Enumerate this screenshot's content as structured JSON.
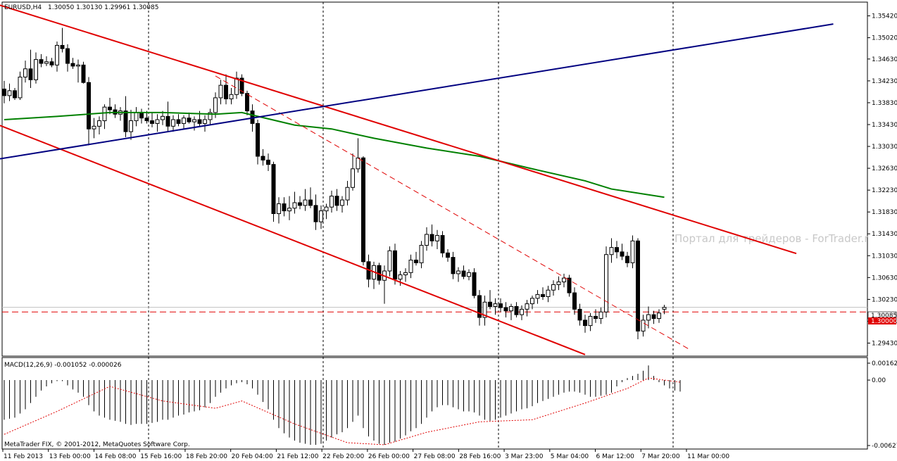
{
  "header": {
    "symbol_tf": "EURUSD,H4",
    "ohlc": "1.30050 1.30130 1.29961 1.30085"
  },
  "watermark": "Портал для трейдеров - ForTrader.ru",
  "copyright": "MetaTrader FIX, © 2001-2012, MetaQuotes Software Corp.",
  "macd_label": "MACD(12,26,9) -0.001052 -0.000026",
  "colors": {
    "bull_body": "#ffffff",
    "bear_body": "#000000",
    "channel": "#e00000",
    "trendline": "#000080",
    "ma": "#008000",
    "level": "#e00000",
    "signal": "#e00000",
    "current_price_bg": "#ffffff",
    "level_bg": "#e00000"
  },
  "price_axis": {
    "ticks": [
      "1.35420",
      "1.35020",
      "1.34630",
      "1.34230",
      "1.33830",
      "1.33430",
      "1.33030",
      "1.32630",
      "1.32230",
      "1.31830",
      "1.31430",
      "1.31030",
      "1.30630",
      "1.30230",
      "1.29830",
      "1.29430"
    ],
    "current_price": "1.30085",
    "level_price": "1.30000"
  },
  "macd_axis": {
    "ticks": [
      "0.001622",
      "0.00",
      "-0.00627"
    ]
  },
  "time_axis": {
    "labels": [
      "11 Feb 2013",
      "13 Feb 00:00",
      "14 Feb 08:00",
      "15 Feb 16:00",
      "18 Feb 20:00",
      "20 Feb 04:00",
      "21 Feb 12:00",
      "22 Feb 20:00",
      "26 Feb 00:00",
      "27 Feb 08:00",
      "28 Feb 16:00",
      "3 Mar 23:00",
      "5 Mar 04:00",
      "6 Mar 12:00",
      "7 Mar 20:00",
      "11 Mar 00:00"
    ]
  },
  "chart_data": {
    "type": "candlestick",
    "symbol": "EURUSD",
    "timeframe": "H4",
    "ylim": [
      1.2923,
      1.3562
    ],
    "grid": false,
    "candles": [
      {
        "o": 1.3408,
        "h": 1.3423,
        "l": 1.3382,
        "c": 1.3396
      },
      {
        "o": 1.3396,
        "h": 1.3418,
        "l": 1.3386,
        "c": 1.3405
      },
      {
        "o": 1.3405,
        "h": 1.341,
        "l": 1.3388,
        "c": 1.3392
      },
      {
        "o": 1.3392,
        "h": 1.344,
        "l": 1.3388,
        "c": 1.343
      },
      {
        "o": 1.343,
        "h": 1.346,
        "l": 1.342,
        "c": 1.3445
      },
      {
        "o": 1.3445,
        "h": 1.348,
        "l": 1.341,
        "c": 1.3425
      },
      {
        "o": 1.3425,
        "h": 1.3475,
        "l": 1.3418,
        "c": 1.3462
      },
      {
        "o": 1.3462,
        "h": 1.3472,
        "l": 1.3448,
        "c": 1.3455
      },
      {
        "o": 1.3455,
        "h": 1.3468,
        "l": 1.345,
        "c": 1.3458
      },
      {
        "o": 1.3458,
        "h": 1.3465,
        "l": 1.3448,
        "c": 1.3452
      },
      {
        "o": 1.3452,
        "h": 1.3495,
        "l": 1.344,
        "c": 1.3488
      },
      {
        "o": 1.3488,
        "h": 1.352,
        "l": 1.3475,
        "c": 1.3482
      },
      {
        "o": 1.3482,
        "h": 1.349,
        "l": 1.344,
        "c": 1.3455
      },
      {
        "o": 1.3455,
        "h": 1.3465,
        "l": 1.3445,
        "c": 1.345
      },
      {
        "o": 1.345,
        "h": 1.3462,
        "l": 1.342,
        "c": 1.3452
      },
      {
        "o": 1.3452,
        "h": 1.3458,
        "l": 1.3418,
        "c": 1.342
      },
      {
        "o": 1.342,
        "h": 1.343,
        "l": 1.3305,
        "c": 1.3335
      },
      {
        "o": 1.3335,
        "h": 1.3355,
        "l": 1.3318,
        "c": 1.334
      },
      {
        "o": 1.334,
        "h": 1.3358,
        "l": 1.3325,
        "c": 1.335
      },
      {
        "o": 1.335,
        "h": 1.338,
        "l": 1.3335,
        "c": 1.3375
      },
      {
        "o": 1.3375,
        "h": 1.3392,
        "l": 1.3362,
        "c": 1.337
      },
      {
        "o": 1.337,
        "h": 1.338,
        "l": 1.3355,
        "c": 1.3362
      },
      {
        "o": 1.3362,
        "h": 1.3375,
        "l": 1.335,
        "c": 1.3368
      },
      {
        "o": 1.3368,
        "h": 1.3395,
        "l": 1.332,
        "c": 1.333
      },
      {
        "o": 1.333,
        "h": 1.337,
        "l": 1.3315,
        "c": 1.335
      },
      {
        "o": 1.335,
        "h": 1.3375,
        "l": 1.334,
        "c": 1.3365
      },
      {
        "o": 1.3365,
        "h": 1.3372,
        "l": 1.3345,
        "c": 1.3355
      },
      {
        "o": 1.3355,
        "h": 1.3368,
        "l": 1.3345,
        "c": 1.335
      },
      {
        "o": 1.335,
        "h": 1.3365,
        "l": 1.3338,
        "c": 1.3345
      },
      {
        "o": 1.3345,
        "h": 1.3362,
        "l": 1.333,
        "c": 1.3352
      },
      {
        "o": 1.3352,
        "h": 1.3368,
        "l": 1.3342,
        "c": 1.3358
      },
      {
        "o": 1.3358,
        "h": 1.3385,
        "l": 1.333,
        "c": 1.334
      },
      {
        "o": 1.334,
        "h": 1.336,
        "l": 1.333,
        "c": 1.3352
      },
      {
        "o": 1.3352,
        "h": 1.3362,
        "l": 1.334,
        "c": 1.3345
      },
      {
        "o": 1.3345,
        "h": 1.336,
        "l": 1.3335,
        "c": 1.3355
      },
      {
        "o": 1.3355,
        "h": 1.3365,
        "l": 1.3345,
        "c": 1.3348
      },
      {
        "o": 1.3348,
        "h": 1.3358,
        "l": 1.3332,
        "c": 1.3352
      },
      {
        "o": 1.3352,
        "h": 1.3368,
        "l": 1.334,
        "c": 1.3345
      },
      {
        "o": 1.3345,
        "h": 1.336,
        "l": 1.333,
        "c": 1.3352
      },
      {
        "o": 1.3352,
        "h": 1.3372,
        "l": 1.3342,
        "c": 1.3365
      },
      {
        "o": 1.3365,
        "h": 1.3402,
        "l": 1.3355,
        "c": 1.3392
      },
      {
        "o": 1.3392,
        "h": 1.3425,
        "l": 1.338,
        "c": 1.3415
      },
      {
        "o": 1.3415,
        "h": 1.3435,
        "l": 1.338,
        "c": 1.339
      },
      {
        "o": 1.339,
        "h": 1.341,
        "l": 1.338,
        "c": 1.3398
      },
      {
        "o": 1.3398,
        "h": 1.344,
        "l": 1.339,
        "c": 1.3428
      },
      {
        "o": 1.3428,
        "h": 1.3435,
        "l": 1.3395,
        "c": 1.34
      },
      {
        "o": 1.34,
        "h": 1.3405,
        "l": 1.336,
        "c": 1.3368
      },
      {
        "o": 1.3368,
        "h": 1.338,
        "l": 1.333,
        "c": 1.3345
      },
      {
        "o": 1.3345,
        "h": 1.3352,
        "l": 1.327,
        "c": 1.3285
      },
      {
        "o": 1.3285,
        "h": 1.3298,
        "l": 1.3268,
        "c": 1.3278
      },
      {
        "o": 1.3278,
        "h": 1.329,
        "l": 1.3258,
        "c": 1.327
      },
      {
        "o": 1.327,
        "h": 1.3275,
        "l": 1.3165,
        "c": 1.318
      },
      {
        "o": 1.318,
        "h": 1.321,
        "l": 1.3162,
        "c": 1.3198
      },
      {
        "o": 1.3198,
        "h": 1.321,
        "l": 1.3175,
        "c": 1.3185
      },
      {
        "o": 1.3185,
        "h": 1.3212,
        "l": 1.3168,
        "c": 1.319
      },
      {
        "o": 1.319,
        "h": 1.322,
        "l": 1.318,
        "c": 1.32
      },
      {
        "o": 1.32,
        "h": 1.3212,
        "l": 1.3188,
        "c": 1.3195
      },
      {
        "o": 1.3195,
        "h": 1.3225,
        "l": 1.3185,
        "c": 1.3205
      },
      {
        "o": 1.3205,
        "h": 1.3228,
        "l": 1.319,
        "c": 1.3195
      },
      {
        "o": 1.3195,
        "h": 1.3215,
        "l": 1.315,
        "c": 1.3165
      },
      {
        "o": 1.3165,
        "h": 1.3195,
        "l": 1.3152,
        "c": 1.3185
      },
      {
        "o": 1.3185,
        "h": 1.3198,
        "l": 1.317,
        "c": 1.3192
      },
      {
        "o": 1.3192,
        "h": 1.3222,
        "l": 1.3182,
        "c": 1.3212
      },
      {
        "o": 1.3212,
        "h": 1.3225,
        "l": 1.3185,
        "c": 1.3195
      },
      {
        "o": 1.3195,
        "h": 1.3212,
        "l": 1.3182,
        "c": 1.3205
      },
      {
        "o": 1.3205,
        "h": 1.324,
        "l": 1.3195,
        "c": 1.3228
      },
      {
        "o": 1.3228,
        "h": 1.329,
        "l": 1.3222,
        "c": 1.3262
      },
      {
        "o": 1.3262,
        "h": 1.3318,
        "l": 1.3255,
        "c": 1.3282
      },
      {
        "o": 1.3282,
        "h": 1.3285,
        "l": 1.3085,
        "c": 1.3092
      },
      {
        "o": 1.3092,
        "h": 1.3105,
        "l": 1.3045,
        "c": 1.306
      },
      {
        "o": 1.306,
        "h": 1.3092,
        "l": 1.3042,
        "c": 1.3085
      },
      {
        "o": 1.3085,
        "h": 1.309,
        "l": 1.305,
        "c": 1.3058
      },
      {
        "o": 1.3058,
        "h": 1.3085,
        "l": 1.3015,
        "c": 1.3075
      },
      {
        "o": 1.3075,
        "h": 1.312,
        "l": 1.3065,
        "c": 1.3112
      },
      {
        "o": 1.3112,
        "h": 1.3125,
        "l": 1.305,
        "c": 1.306
      },
      {
        "o": 1.306,
        "h": 1.3075,
        "l": 1.3048,
        "c": 1.3068
      },
      {
        "o": 1.3068,
        "h": 1.308,
        "l": 1.3055,
        "c": 1.3072
      },
      {
        "o": 1.3072,
        "h": 1.3105,
        "l": 1.3062,
        "c": 1.3095
      },
      {
        "o": 1.3095,
        "h": 1.311,
        "l": 1.3085,
        "c": 1.309
      },
      {
        "o": 1.309,
        "h": 1.313,
        "l": 1.308,
        "c": 1.3122
      },
      {
        "o": 1.3122,
        "h": 1.3155,
        "l": 1.3112,
        "c": 1.3142
      },
      {
        "o": 1.3142,
        "h": 1.316,
        "l": 1.312,
        "c": 1.313
      },
      {
        "o": 1.313,
        "h": 1.315,
        "l": 1.3115,
        "c": 1.314
      },
      {
        "o": 1.314,
        "h": 1.3148,
        "l": 1.31,
        "c": 1.3108
      },
      {
        "o": 1.3108,
        "h": 1.3115,
        "l": 1.3092,
        "c": 1.31
      },
      {
        "o": 1.31,
        "h": 1.311,
        "l": 1.306,
        "c": 1.307
      },
      {
        "o": 1.307,
        "h": 1.3082,
        "l": 1.3055,
        "c": 1.3075
      },
      {
        "o": 1.3075,
        "h": 1.3085,
        "l": 1.306,
        "c": 1.3065
      },
      {
        "o": 1.3065,
        "h": 1.3078,
        "l": 1.3058,
        "c": 1.3072
      },
      {
        "o": 1.3072,
        "h": 1.308,
        "l": 1.3025,
        "c": 1.303
      },
      {
        "o": 1.303,
        "h": 1.304,
        "l": 1.2975,
        "c": 1.299
      },
      {
        "o": 1.299,
        "h": 1.303,
        "l": 1.2975,
        "c": 1.3018
      },
      {
        "o": 1.3018,
        "h": 1.304,
        "l": 1.3005,
        "c": 1.301
      },
      {
        "o": 1.301,
        "h": 1.3025,
        "l": 1.2995,
        "c": 1.3015
      },
      {
        "o": 1.3015,
        "h": 1.3025,
        "l": 1.3,
        "c": 1.3008
      },
      {
        "o": 1.3008,
        "h": 1.3018,
        "l": 1.299,
        "c": 1.3002
      },
      {
        "o": 1.3002,
        "h": 1.3015,
        "l": 1.2985,
        "c": 1.301
      },
      {
        "o": 1.301,
        "h": 1.3018,
        "l": 1.299,
        "c": 1.2995
      },
      {
        "o": 1.2995,
        "h": 1.3012,
        "l": 1.2985,
        "c": 1.3005
      },
      {
        "o": 1.3005,
        "h": 1.3022,
        "l": 1.2992,
        "c": 1.3015
      },
      {
        "o": 1.3015,
        "h": 1.303,
        "l": 1.3005,
        "c": 1.3025
      },
      {
        "o": 1.3025,
        "h": 1.304,
        "l": 1.3015,
        "c": 1.3032
      },
      {
        "o": 1.3032,
        "h": 1.3045,
        "l": 1.3022,
        "c": 1.3028
      },
      {
        "o": 1.3028,
        "h": 1.3048,
        "l": 1.3018,
        "c": 1.304
      },
      {
        "o": 1.304,
        "h": 1.3058,
        "l": 1.303,
        "c": 1.305
      },
      {
        "o": 1.305,
        "h": 1.3065,
        "l": 1.304,
        "c": 1.3055
      },
      {
        "o": 1.3055,
        "h": 1.307,
        "l": 1.3045,
        "c": 1.3062
      },
      {
        "o": 1.3062,
        "h": 1.3068,
        "l": 1.3028,
        "c": 1.3035
      },
      {
        "o": 1.3035,
        "h": 1.3045,
        "l": 1.2995,
        "c": 1.3005
      },
      {
        "o": 1.3005,
        "h": 1.3015,
        "l": 1.2975,
        "c": 1.2985
      },
      {
        "o": 1.2985,
        "h": 1.2995,
        "l": 1.2962,
        "c": 1.2975
      },
      {
        "o": 1.2975,
        "h": 1.2998,
        "l": 1.2965,
        "c": 1.2992
      },
      {
        "o": 1.2992,
        "h": 1.3005,
        "l": 1.298,
        "c": 1.2988
      },
      {
        "o": 1.2988,
        "h": 1.3008,
        "l": 1.2978,
        "c": 1.3
      },
      {
        "o": 1.3,
        "h": 1.312,
        "l": 1.299,
        "c": 1.3105
      },
      {
        "o": 1.3105,
        "h": 1.3135,
        "l": 1.309,
        "c": 1.3118
      },
      {
        "o": 1.3118,
        "h": 1.313,
        "l": 1.3098,
        "c": 1.311
      },
      {
        "o": 1.311,
        "h": 1.3125,
        "l": 1.3095,
        "c": 1.3102
      },
      {
        "o": 1.3102,
        "h": 1.311,
        "l": 1.3082,
        "c": 1.309
      },
      {
        "o": 1.309,
        "h": 1.314,
        "l": 1.308,
        "c": 1.313
      },
      {
        "o": 1.313,
        "h": 1.3135,
        "l": 1.295,
        "c": 1.2965
      },
      {
        "o": 1.2965,
        "h": 1.2995,
        "l": 1.2955,
        "c": 1.2985
      },
      {
        "o": 1.2985,
        "h": 1.301,
        "l": 1.297,
        "c": 1.2995
      },
      {
        "o": 1.2995,
        "h": 1.3002,
        "l": 1.2978,
        "c": 1.2988
      },
      {
        "o": 1.2988,
        "h": 1.3005,
        "l": 1.298,
        "c": 1.2998
      },
      {
        "o": 1.3005,
        "h": 1.3013,
        "l": 1.2996,
        "c": 1.30085
      }
    ],
    "moving_average": [
      [
        0,
        1.3352
      ],
      [
        10,
        1.3358
      ],
      [
        20,
        1.3365
      ],
      [
        30,
        1.3365
      ],
      [
        40,
        1.3362
      ],
      [
        45,
        1.3365
      ],
      [
        55,
        1.3342
      ],
      [
        62,
        1.3335
      ],
      [
        70,
        1.3318
      ],
      [
        80,
        1.33
      ],
      [
        90,
        1.3285
      ],
      [
        100,
        1.3262
      ],
      [
        110,
        1.324
      ],
      [
        115,
        1.3225
      ],
      [
        125,
        1.321
      ]
    ],
    "trend_lines": [
      {
        "name": "channel-upper",
        "style": "solid",
        "color": "#e00000",
        "points": [
          [
            -1,
            1.3562
          ],
          [
            150,
            1.3107
          ]
        ]
      },
      {
        "name": "channel-lower",
        "style": "solid",
        "color": "#e00000",
        "points": [
          [
            -1,
            1.3342
          ],
          [
            110,
            1.2922
          ]
        ]
      },
      {
        "name": "channel-mid",
        "style": "dashed",
        "color": "#e00000",
        "points": [
          [
            40,
            1.3432
          ],
          [
            130,
            1.293
          ]
        ]
      },
      {
        "name": "rising-trendline",
        "style": "solid",
        "color": "#000080",
        "points": [
          [
            -1,
            1.328
          ],
          [
            157,
            1.3527
          ]
        ]
      }
    ],
    "horizontal_levels": [
      {
        "name": "level-1.3000",
        "price": 1.3,
        "style": "dashed",
        "color": "#e00000"
      }
    ],
    "macd": {
      "params": "12,26,9",
      "value": -0.001052,
      "signal_value": -2.6e-05,
      "ylim": [
        -0.00627,
        0.001622
      ],
      "histogram": [
        -0.0038,
        -0.0037,
        -0.0036,
        -0.0032,
        -0.0028,
        -0.0022,
        -0.0016,
        -0.001,
        -0.0006,
        -0.0003,
        -0.0001,
        -0.0001,
        -0.0005,
        -0.0009,
        -0.0012,
        -0.0016,
        -0.0024,
        -0.003,
        -0.0034,
        -0.0036,
        -0.0038,
        -0.0039,
        -0.004,
        -0.0042,
        -0.0043,
        -0.0042,
        -0.0042,
        -0.0042,
        -0.0041,
        -0.004,
        -0.0038,
        -0.0038,
        -0.0036,
        -0.0034,
        -0.0033,
        -0.0031,
        -0.003,
        -0.0029,
        -0.0026,
        -0.0022,
        -0.0016,
        -0.0012,
        -0.0008,
        -0.0005,
        -0.0003,
        -0.0002,
        -0.0004,
        -0.0008,
        -0.0014,
        -0.0021,
        -0.0028,
        -0.0038,
        -0.0046,
        -0.0051,
        -0.0055,
        -0.0058,
        -0.006,
        -0.0061,
        -0.0062,
        -0.0062,
        -0.0061,
        -0.0058,
        -0.0055,
        -0.0052,
        -0.005,
        -0.0046,
        -0.004,
        -0.0034,
        -0.0046,
        -0.0054,
        -0.0058,
        -0.0061,
        -0.0062,
        -0.006,
        -0.0059,
        -0.0056,
        -0.0053,
        -0.0049,
        -0.0046,
        -0.0042,
        -0.0036,
        -0.003,
        -0.0026,
        -0.0024,
        -0.0024,
        -0.0026,
        -0.0028,
        -0.003,
        -0.003,
        -0.0031,
        -0.0034,
        -0.0038,
        -0.0039,
        -0.0038,
        -0.0036,
        -0.0034,
        -0.0032,
        -0.003,
        -0.0028,
        -0.0027,
        -0.0025,
        -0.0022,
        -0.002,
        -0.0018,
        -0.0016,
        -0.0014,
        -0.0012,
        -0.0011,
        -0.0011,
        -0.0012,
        -0.0014,
        -0.0016,
        -0.0016,
        -0.0015,
        -0.0014,
        -0.0012,
        -0.0006,
        -0.0002,
        0.0002,
        0.0004,
        0.0006,
        0.0009,
        0.0014,
        0.0004,
        -0.0002,
        -0.0005,
        -0.0008,
        -0.001,
        -0.0011
      ],
      "signal": [
        [
          0,
          -0.0052
        ],
        [
          10,
          -0.003
        ],
        [
          20,
          -0.0006
        ],
        [
          30,
          -0.002
        ],
        [
          40,
          -0.0027
        ],
        [
          45,
          -0.002
        ],
        [
          55,
          -0.0042
        ],
        [
          65,
          -0.006
        ],
        [
          72,
          -0.0062
        ],
        [
          80,
          -0.005
        ],
        [
          90,
          -0.004
        ],
        [
          100,
          -0.0038
        ],
        [
          110,
          -0.0022
        ],
        [
          118,
          -0.0008
        ],
        [
          122,
          0.0002
        ],
        [
          128,
          -0.0002
        ]
      ]
    }
  }
}
